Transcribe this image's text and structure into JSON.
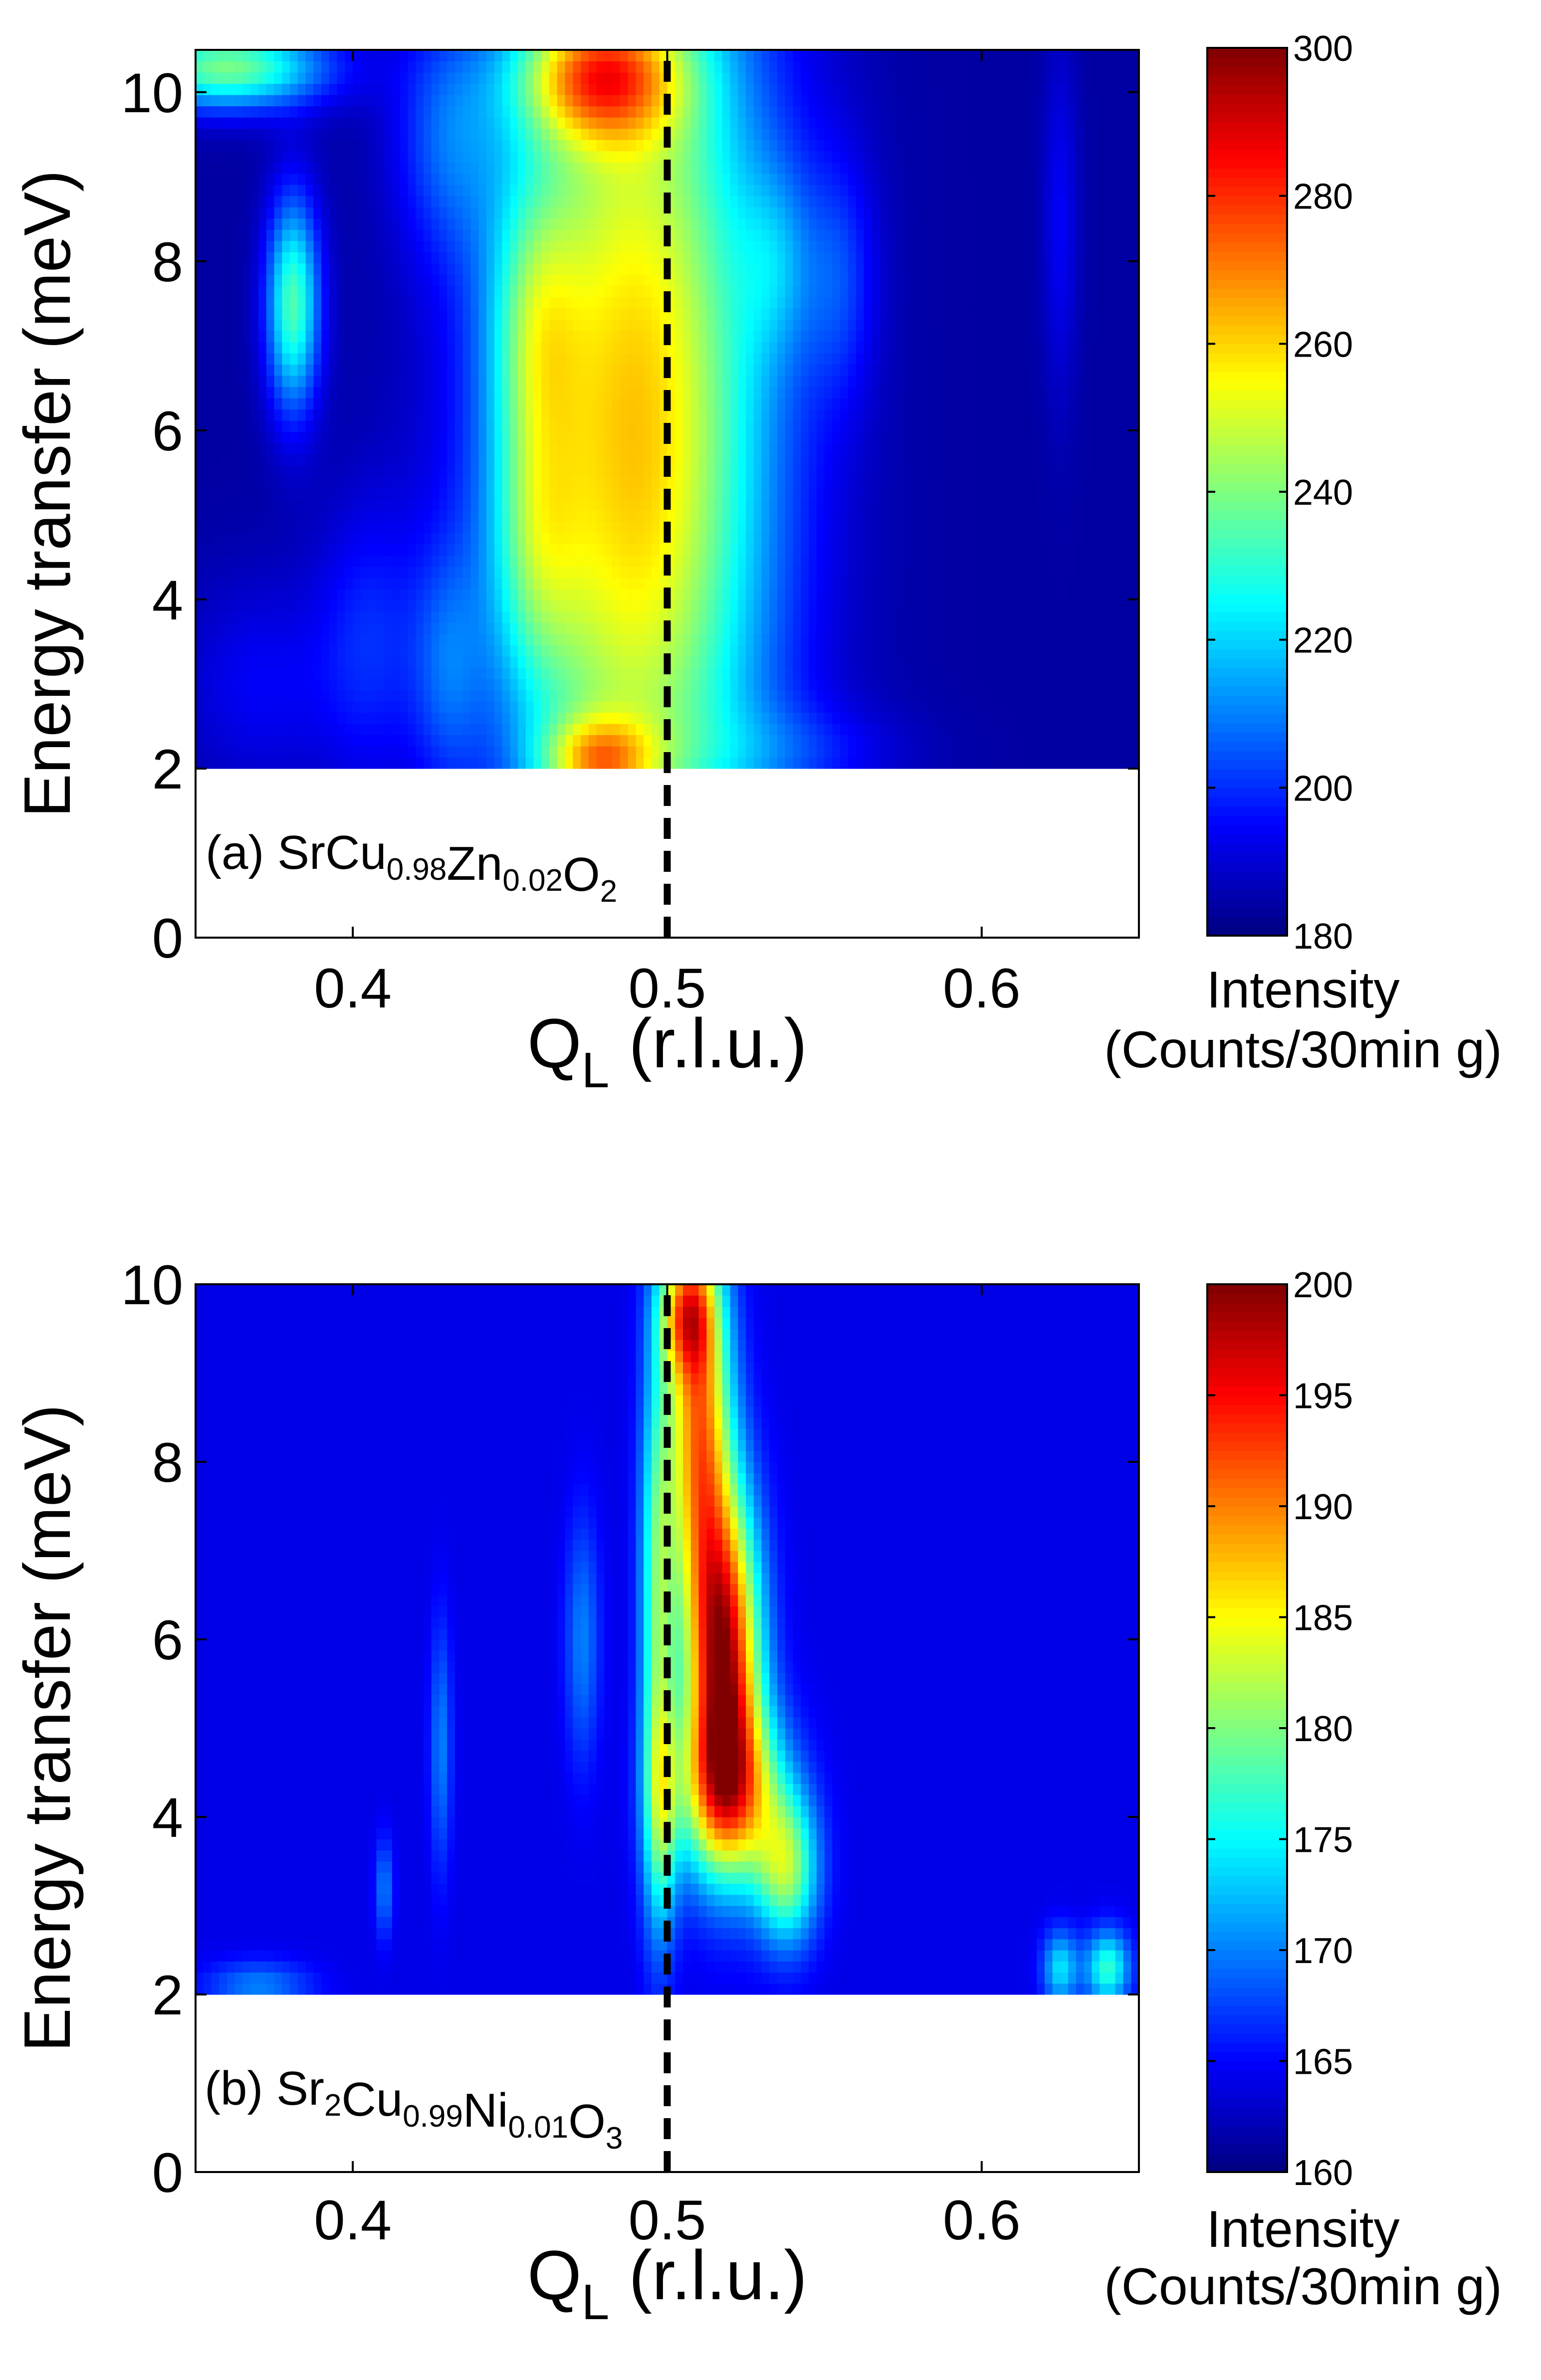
{
  "colors": {
    "colormap": "jet",
    "dashed_line": "#000000",
    "frame": "#000000",
    "background": "#ffffff"
  },
  "chart_data": [
    {
      "type": "heatmap",
      "panel": "a",
      "sample_label": {
        "prefix": "(a) ",
        "parts": [
          {
            "text": "SrCu",
            "sub": "0.98"
          },
          {
            "text": "Zn",
            "sub": "0.02"
          },
          {
            "text": "O",
            "sub": "2"
          }
        ]
      },
      "xlabel": {
        "main": "Q",
        "sub": "L",
        "rest": " (r.l.u.)"
      },
      "ylabel": "Energy transfer (meV)",
      "xlim": [
        0.35,
        0.65
      ],
      "ylim": [
        0,
        10.5
      ],
      "data_ymin": 2,
      "xticks": [
        "0.4",
        "0.5",
        "0.6"
      ],
      "xtick_values": [
        0.4,
        0.5,
        0.6
      ],
      "yticks": [
        "0",
        "2",
        "4",
        "6",
        "8",
        "10"
      ],
      "ytick_values": [
        0,
        2,
        4,
        6,
        8,
        10
      ],
      "colorbar": {
        "min": 180,
        "max": 300,
        "ticks": [
          "180",
          "200",
          "220",
          "240",
          "260",
          "280",
          "300"
        ],
        "tick_values": [
          180,
          200,
          220,
          240,
          260,
          280,
          300
        ],
        "label_line1": "Intensity",
        "label_line2": "(Counts/30min g)"
      },
      "dashed_line": {
        "x": [
          0.5,
          0.5
        ],
        "y": [
          0,
          10.5
        ],
        "label": ""
      },
      "blobs": [
        {
          "x": 0.49,
          "y": 6.0,
          "sx": 0.03,
          "sy": 4.5,
          "amp": 78
        },
        {
          "x": 0.458,
          "y": 7.2,
          "sx": 0.01,
          "sy": 1.2,
          "amp": 26
        },
        {
          "x": 0.458,
          "y": 4.6,
          "sx": 0.01,
          "sy": 1.1,
          "amp": 22
        },
        {
          "x": 0.478,
          "y": 10.2,
          "sx": 0.018,
          "sy": 0.55,
          "amp": 55
        },
        {
          "x": 0.478,
          "y": 2.1,
          "sx": 0.012,
          "sy": 0.35,
          "amp": 40
        },
        {
          "x": 0.381,
          "y": 7.5,
          "sx": 0.006,
          "sy": 0.9,
          "amp": 50
        },
        {
          "x": 0.36,
          "y": 10.3,
          "sx": 0.022,
          "sy": 0.35,
          "amp": 55
        },
        {
          "x": 0.405,
          "y": 3.5,
          "sx": 0.012,
          "sy": 1.2,
          "amp": 14
        },
        {
          "x": 0.43,
          "y": 3.2,
          "sx": 0.008,
          "sy": 1.0,
          "amp": 16
        },
        {
          "x": 0.43,
          "y": 9.5,
          "sx": 0.012,
          "sy": 1.0,
          "amp": 18
        },
        {
          "x": 0.37,
          "y": 3.0,
          "sx": 0.018,
          "sy": 0.9,
          "amp": 10
        },
        {
          "x": 0.555,
          "y": 7.8,
          "sx": 0.008,
          "sy": 1.0,
          "amp": 14
        },
        {
          "x": 0.535,
          "y": 8.0,
          "sx": 0.008,
          "sy": 0.8,
          "amp": 14
        },
        {
          "x": 0.54,
          "y": 2.2,
          "sx": 0.025,
          "sy": 0.4,
          "amp": 10
        },
        {
          "x": 0.625,
          "y": 8.5,
          "sx": 0.004,
          "sy": 1.5,
          "amp": 10
        }
      ]
    },
    {
      "type": "heatmap",
      "panel": "b",
      "sample_label": {
        "prefix": "(b) ",
        "parts": [
          {
            "text": "Sr",
            "sub": "2"
          },
          {
            "text": "Cu",
            "sub": "0.99"
          },
          {
            "text": "Ni",
            "sub": "0.01"
          },
          {
            "text": "O",
            "sub": "3"
          }
        ]
      },
      "xlabel": {
        "main": "Q",
        "sub": "L",
        "rest": " (r.l.u.)"
      },
      "ylabel": "Energy transfer (meV)",
      "xlim": [
        0.35,
        0.65
      ],
      "ylim": [
        0,
        10
      ],
      "data_ymin": 2,
      "xticks": [
        "0.4",
        "0.5",
        "0.6"
      ],
      "xtick_values": [
        0.4,
        0.5,
        0.6
      ],
      "yticks": [
        "0",
        "2",
        "4",
        "6",
        "8",
        "10"
      ],
      "ytick_values": [
        0,
        2,
        4,
        6,
        8,
        10
      ],
      "colorbar": {
        "min": 160,
        "max": 200,
        "ticks": [
          "160",
          "165",
          "170",
          "175",
          "180",
          "185",
          "190",
          "195",
          "200"
        ],
        "tick_values": [
          160,
          165,
          170,
          175,
          180,
          185,
          190,
          195,
          200
        ],
        "label_line1": "Intensity",
        "label_line2": "(Counts/30min g)"
      },
      "dashed_line": {
        "x": [
          0.5,
          0.5
        ],
        "y": [
          0,
          10
        ],
        "label": ""
      },
      "blobs": [
        {
          "x": 0.518,
          "y": 5.8,
          "sx": 0.008,
          "sy": 1.3,
          "amp": 33
        },
        {
          "x": 0.51,
          "y": 8.5,
          "sx": 0.007,
          "sy": 1.5,
          "amp": 25
        },
        {
          "x": 0.52,
          "y": 4.3,
          "sx": 0.012,
          "sy": 0.7,
          "amp": 20
        },
        {
          "x": 0.506,
          "y": 9.7,
          "sx": 0.006,
          "sy": 0.5,
          "amp": 17
        },
        {
          "x": 0.497,
          "y": 6.5,
          "sx": 0.004,
          "sy": 2.0,
          "amp": 14
        },
        {
          "x": 0.538,
          "y": 3.4,
          "sx": 0.007,
          "sy": 0.6,
          "amp": 16
        },
        {
          "x": 0.498,
          "y": 4.0,
          "sx": 0.004,
          "sy": 1.0,
          "amp": 10
        },
        {
          "x": 0.473,
          "y": 6.0,
          "sx": 0.004,
          "sy": 1.0,
          "amp": 6
        },
        {
          "x": 0.428,
          "y": 4.8,
          "sx": 0.0025,
          "sy": 1.0,
          "amp": 6
        },
        {
          "x": 0.625,
          "y": 2.3,
          "sx": 0.004,
          "sy": 0.3,
          "amp": 10
        },
        {
          "x": 0.64,
          "y": 2.3,
          "sx": 0.005,
          "sy": 0.3,
          "amp": 13
        },
        {
          "x": 0.37,
          "y": 2.1,
          "sx": 0.012,
          "sy": 0.2,
          "amp": 6
        },
        {
          "x": 0.41,
          "y": 3.2,
          "sx": 0.002,
          "sy": 0.4,
          "amp": 6
        }
      ]
    }
  ]
}
